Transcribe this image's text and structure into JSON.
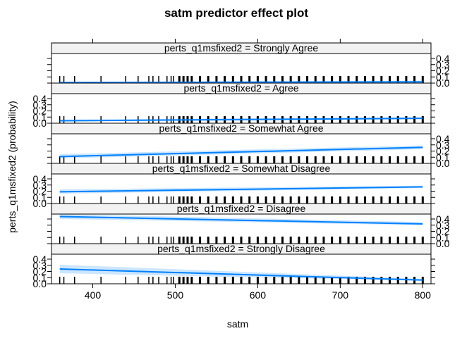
{
  "chart_data": {
    "type": "line",
    "title": "satm predictor effect plot",
    "xlabel": "satm",
    "ylabel": "perts_q1msfixed2 (probability)",
    "xlim": [
      350,
      810
    ],
    "ylim": [
      0,
      0.48
    ],
    "x_ticks": [
      400,
      500,
      600,
      700,
      800
    ],
    "y_ticks": [
      0.0,
      0.1,
      0.2,
      0.3,
      0.4
    ],
    "y_tick_labels": [
      "0.0",
      "0.1",
      "0.2",
      "0.3",
      "0.4"
    ],
    "line_color": "#0080ff",
    "band_color": "#cce6ff",
    "strip_color": "#f2f2f2",
    "x": [
      360,
      800
    ],
    "panels": [
      {
        "label": "perts_q1msfixed2 = Strongly Agree",
        "axis_side": "right",
        "fit": [
          0.01,
          0.02
        ],
        "lower": [
          0.003,
          0.01
        ],
        "upper": [
          0.02,
          0.03
        ]
      },
      {
        "label": "perts_q1msfixed2 = Agree",
        "axis_side": "left",
        "fit": [
          0.04,
          0.08
        ],
        "lower": [
          0.03,
          0.06
        ],
        "upper": [
          0.06,
          0.1
        ]
      },
      {
        "label": "perts_q1msfixed2 = Somewhat Agree",
        "axis_side": "right",
        "fit": [
          0.11,
          0.26
        ],
        "lower": [
          0.08,
          0.23
        ],
        "upper": [
          0.15,
          0.29
        ]
      },
      {
        "label": "perts_q1msfixed2 = Somewhat Disagree",
        "axis_side": "left",
        "fit": [
          0.19,
          0.27
        ],
        "lower": [
          0.16,
          0.25
        ],
        "upper": [
          0.23,
          0.29
        ]
      },
      {
        "label": "perts_q1msfixed2 = Disagree",
        "axis_side": "right",
        "fit": [
          0.44,
          0.32
        ],
        "lower": [
          0.4,
          0.3
        ],
        "upper": [
          0.48,
          0.35
        ]
      },
      {
        "label": "perts_q1msfixed2 = Strongly Disagree",
        "axis_side": "left",
        "fit": [
          0.24,
          0.06
        ],
        "lower": [
          0.17,
          0.05
        ],
        "upper": [
          0.31,
          0.08
        ]
      }
    ],
    "rug": [
      360,
      365,
      378,
      410,
      440,
      455,
      468,
      473,
      480,
      490,
      495,
      498,
      505,
      510,
      515,
      520,
      530,
      540,
      550,
      560,
      570,
      580,
      590,
      600,
      610,
      620,
      630,
      640,
      650,
      660,
      670,
      680,
      690,
      700,
      710,
      720,
      730,
      740,
      750,
      760,
      770,
      780,
      790,
      800
    ]
  }
}
